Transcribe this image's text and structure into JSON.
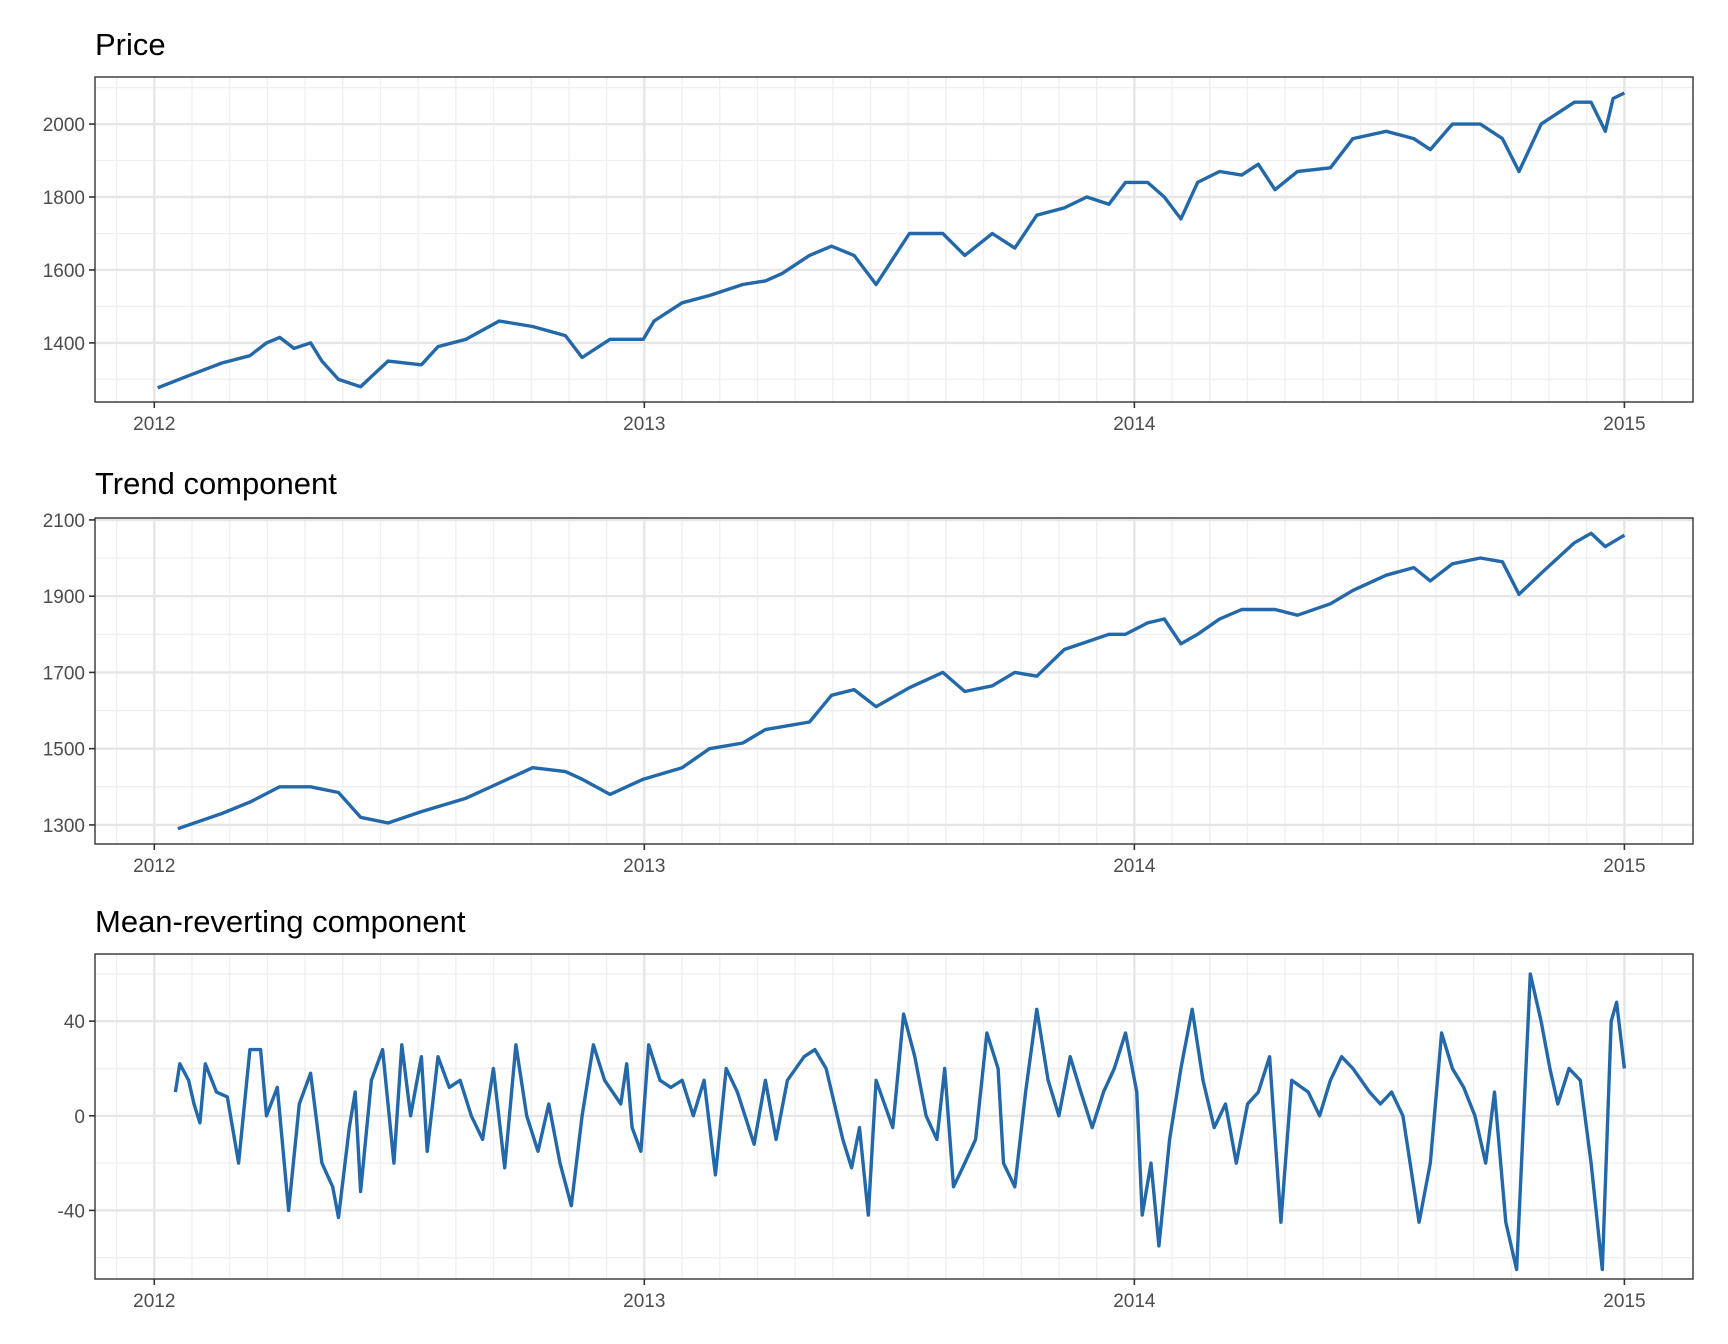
{
  "chart_data": [
    {
      "type": "line",
      "title": "Price",
      "xlabel": "",
      "ylabel": "",
      "x_unit": "decimal year",
      "x_ticks": [
        "2012",
        "2013",
        "2014",
        "2015"
      ],
      "y_ticks": [
        1400,
        1600,
        1800,
        2000
      ],
      "xlim": [
        2011.879,
        2015.14
      ],
      "ylim": [
        1238,
        2129
      ],
      "grid": true,
      "color": "#2369a9",
      "x": [
        2012.007,
        2012.07,
        2012.138,
        2012.195,
        2012.229,
        2012.256,
        2012.285,
        2012.319,
        2012.342,
        2012.376,
        2012.421,
        2012.477,
        2012.545,
        2012.579,
        2012.636,
        2012.704,
        2012.772,
        2012.839,
        2012.873,
        2012.93,
        2012.998,
        2013.02,
        2013.077,
        2013.133,
        2013.201,
        2013.247,
        2013.281,
        2013.337,
        2013.382,
        2013.428,
        2013.473,
        2013.541,
        2013.609,
        2013.654,
        2013.71,
        2013.756,
        2013.801,
        2013.857,
        2013.903,
        2013.948,
        2013.982,
        2014.027,
        2014.061,
        2014.095,
        2014.129,
        2014.174,
        2014.219,
        2014.253,
        2014.287,
        2014.333,
        2014.4,
        2014.446,
        2014.514,
        2014.57,
        2014.604,
        2014.649,
        2014.706,
        2014.751,
        2014.785,
        2014.83,
        2014.898,
        2014.932,
        2014.961,
        2014.977,
        2015.0
      ],
      "y": [
        1277,
        1310,
        1345,
        1365,
        1400,
        1415,
        1385,
        1400,
        1350,
        1300,
        1280,
        1350,
        1340,
        1390,
        1410,
        1460,
        1445,
        1420,
        1360,
        1410,
        1410,
        1460,
        1510,
        1530,
        1560,
        1570,
        1590,
        1640,
        1665,
        1640,
        1560,
        1700,
        1700,
        1640,
        1700,
        1660,
        1750,
        1770,
        1800,
        1780,
        1840,
        1840,
        1800,
        1740,
        1840,
        1870,
        1860,
        1890,
        1820,
        1870,
        1880,
        1960,
        1980,
        1960,
        1930,
        2000,
        2000,
        1960,
        1870,
        2000,
        2060,
        2060,
        1980,
        2070,
        2085
      ]
    },
    {
      "type": "line",
      "title": "Trend component",
      "xlabel": "",
      "ylabel": "",
      "x_unit": "decimal year",
      "x_ticks": [
        "2012",
        "2013",
        "2014",
        "2015"
      ],
      "y_ticks": [
        1300,
        1500,
        1700,
        1900,
        2100
      ],
      "xlim": [
        2011.879,
        2015.14
      ],
      "ylim": [
        1250,
        2105
      ],
      "grid": true,
      "color": "#2369a9",
      "x": [
        2012.048,
        2012.138,
        2012.195,
        2012.256,
        2012.319,
        2012.376,
        2012.421,
        2012.477,
        2012.545,
        2012.636,
        2012.704,
        2012.772,
        2012.839,
        2012.873,
        2012.93,
        2012.998,
        2013.077,
        2013.133,
        2013.201,
        2013.247,
        2013.337,
        2013.382,
        2013.428,
        2013.473,
        2013.541,
        2013.609,
        2013.654,
        2013.71,
        2013.756,
        2013.801,
        2013.857,
        2013.903,
        2013.948,
        2013.982,
        2014.027,
        2014.061,
        2014.095,
        2014.129,
        2014.174,
        2014.219,
        2014.287,
        2014.333,
        2014.4,
        2014.446,
        2014.514,
        2014.57,
        2014.604,
        2014.649,
        2014.706,
        2014.751,
        2014.785,
        2014.83,
        2014.898,
        2014.932,
        2014.961,
        2015.0
      ],
      "y": [
        1290,
        1330,
        1360,
        1400,
        1400,
        1385,
        1320,
        1305,
        1335,
        1370,
        1410,
        1450,
        1440,
        1420,
        1380,
        1420,
        1450,
        1500,
        1515,
        1550,
        1570,
        1640,
        1655,
        1610,
        1660,
        1700,
        1650,
        1665,
        1700,
        1690,
        1760,
        1780,
        1800,
        1800,
        1830,
        1840,
        1775,
        1800,
        1840,
        1865,
        1865,
        1850,
        1880,
        1915,
        1955,
        1975,
        1940,
        1985,
        2000,
        1990,
        1905,
        1960,
        2040,
        2065,
        2030,
        2060
      ]
    },
    {
      "type": "line",
      "title": "Mean-reverting component",
      "xlabel": "",
      "ylabel": "",
      "x_unit": "decimal year",
      "x_ticks": [
        "2012",
        "2013",
        "2014",
        "2015"
      ],
      "y_ticks": [
        -40,
        0,
        40
      ],
      "xlim": [
        2011.879,
        2015.14
      ],
      "ylim": [
        -69,
        68.4
      ],
      "grid": true,
      "color": "#2369a9",
      "x": [
        2012.043,
        2012.052,
        2012.07,
        2012.081,
        2012.093,
        2012.104,
        2012.127,
        2012.149,
        2012.172,
        2012.195,
        2012.217,
        2012.229,
        2012.251,
        2012.274,
        2012.296,
        2012.319,
        2012.342,
        2012.364,
        2012.376,
        2012.398,
        2012.41,
        2012.421,
        2012.443,
        2012.466,
        2012.489,
        2012.505,
        2012.523,
        2012.545,
        2012.557,
        2012.579,
        2012.602,
        2012.624,
        2012.647,
        2012.67,
        2012.692,
        2012.715,
        2012.738,
        2012.76,
        2012.783,
        2012.805,
        2012.828,
        2012.851,
        2012.873,
        2012.896,
        2012.919,
        2012.952,
        2012.964,
        2012.975,
        2012.993,
        2013.009,
        2013.032,
        2013.054,
        2013.077,
        2013.1,
        2013.122,
        2013.145,
        2013.167,
        2013.19,
        2013.224,
        2013.247,
        2013.269,
        2013.292,
        2013.326,
        2013.348,
        2013.371,
        2013.405,
        2013.423,
        2013.439,
        2013.457,
        2013.473,
        2013.507,
        2013.529,
        2013.552,
        2013.575,
        2013.597,
        2013.613,
        2013.631,
        2013.654,
        2013.676,
        2013.699,
        2013.722,
        2013.733,
        2013.756,
        2013.778,
        2013.801,
        2013.824,
        2013.846,
        2013.869,
        2013.891,
        2013.914,
        2013.937,
        2013.959,
        2013.982,
        2014.005,
        2014.016,
        2014.034,
        2014.05,
        2014.072,
        2014.095,
        2014.118,
        2014.14,
        2014.163,
        2014.186,
        2014.208,
        2014.231,
        2014.253,
        2014.276,
        2014.299,
        2014.321,
        2014.355,
        2014.378,
        2014.4,
        2014.423,
        2014.446,
        2014.48,
        2014.502,
        2014.525,
        2014.548,
        2014.581,
        2014.604,
        2014.627,
        2014.649,
        2014.672,
        2014.695,
        2014.717,
        2014.735,
        2014.758,
        2014.78,
        2014.808,
        2014.83,
        2014.848,
        2014.864,
        2014.887,
        2014.91,
        2014.932,
        2014.955,
        2014.973,
        2014.984,
        2015.0
      ],
      "y": [
        10,
        22,
        15,
        5,
        -3,
        22,
        10,
        8,
        -20,
        28,
        28,
        0,
        12,
        -40,
        5,
        18,
        -20,
        -30,
        -43,
        -5,
        10,
        -32,
        15,
        28,
        -20,
        30,
        0,
        25,
        -15,
        25,
        12,
        15,
        0,
        -10,
        20,
        -22,
        30,
        0,
        -15,
        5,
        -20,
        -38,
        0,
        30,
        15,
        5,
        22,
        -5,
        -15,
        30,
        15,
        12,
        15,
        0,
        15,
        -25,
        20,
        10,
        -12,
        15,
        -10,
        15,
        25,
        28,
        20,
        -10,
        -22,
        -5,
        -42,
        15,
        -5,
        43,
        25,
        0,
        -10,
        20,
        -30,
        -20,
        -10,
        35,
        20,
        -20,
        -30,
        10,
        45,
        15,
        0,
        25,
        10,
        -5,
        10,
        20,
        35,
        10,
        -42,
        -20,
        -55,
        -10,
        20,
        45,
        15,
        -5,
        5,
        -20,
        5,
        10,
        25,
        -45,
        15,
        10,
        0,
        15,
        25,
        20,
        10,
        5,
        10,
        0,
        -45,
        -20,
        35,
        20,
        12,
        0,
        -20,
        10,
        -45,
        -65,
        60,
        40,
        20,
        5,
        20,
        15,
        -20,
        -65,
        40,
        48,
        20
      ]
    }
  ]
}
